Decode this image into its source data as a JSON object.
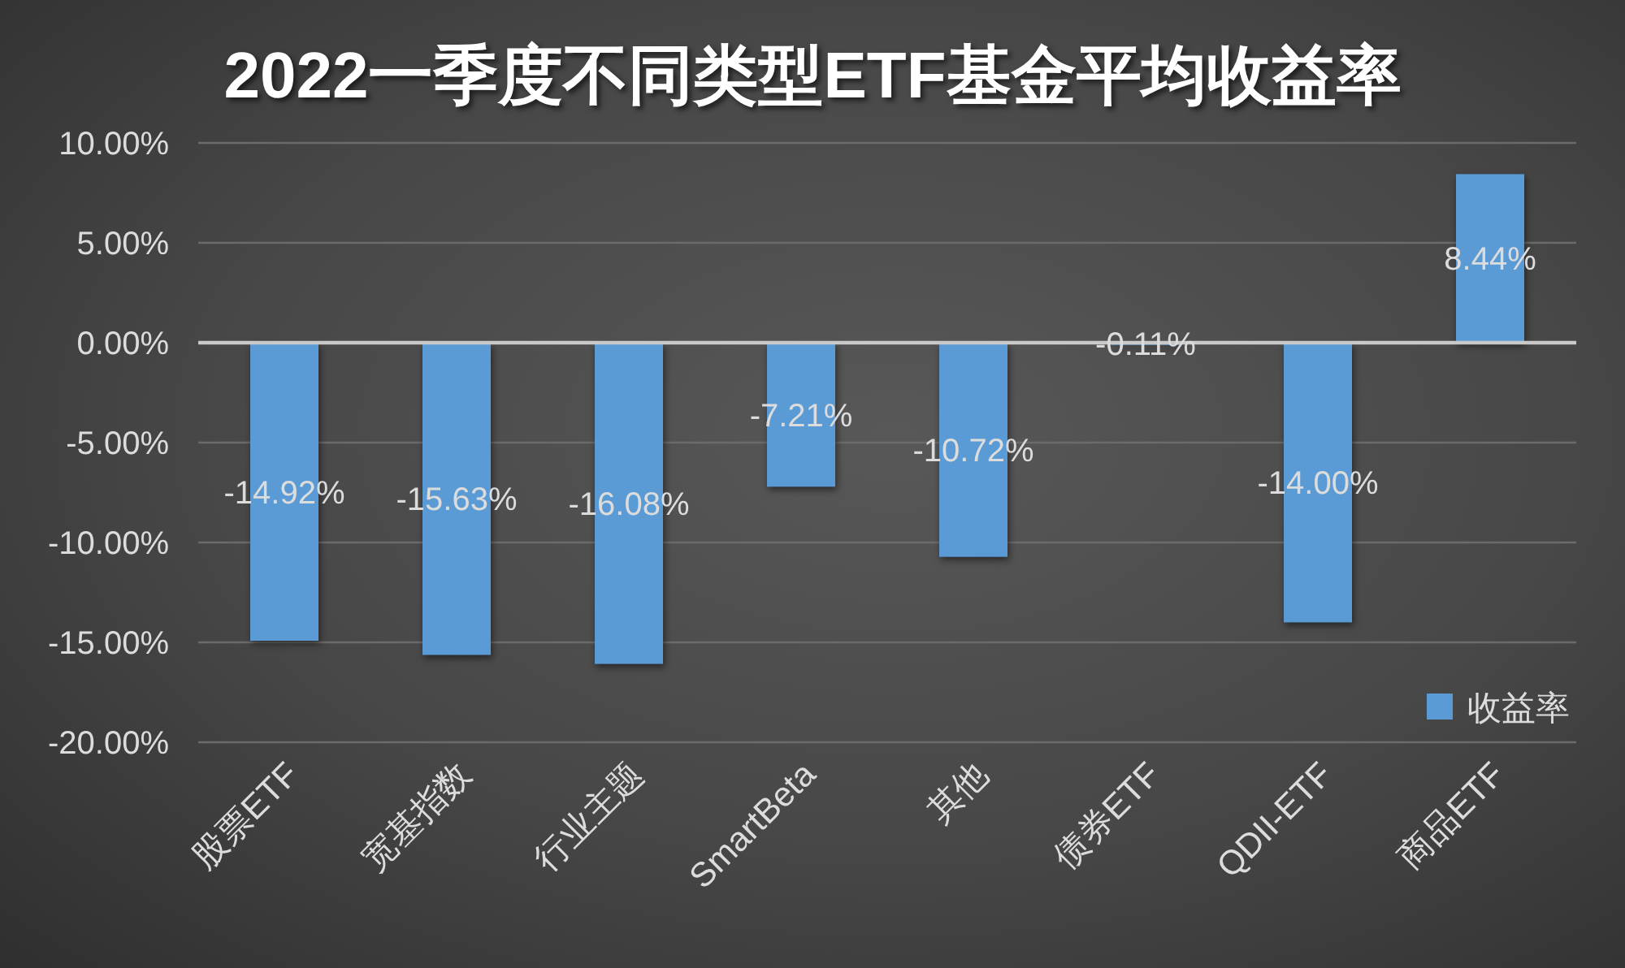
{
  "chart_data": {
    "type": "bar",
    "title": "2022一季度不同类型ETF基金平均收益率",
    "categories": [
      "股票ETF",
      "宽基指数",
      "行业主题",
      "SmartBeta",
      "其他",
      "债券ETF",
      "QDII-ETF",
      "商品ETF"
    ],
    "series": [
      {
        "name": "收益率",
        "color": "#5b9bd5",
        "values": [
          -14.92,
          -15.63,
          -16.08,
          -7.21,
          -10.72,
          -0.11,
          -14.0,
          8.44
        ],
        "value_labels": [
          "-14.92%",
          "-15.63%",
          "-16.08%",
          "-7.21%",
          "-10.72%",
          "-0.11%",
          "-14.00%",
          "8.44%"
        ]
      }
    ],
    "ylim": [
      -20,
      10
    ],
    "yticks": [
      {
        "value": -20,
        "label": "-20.00%"
      },
      {
        "value": -15,
        "label": "-15.00%"
      },
      {
        "value": -10,
        "label": "-10.00%"
      },
      {
        "value": -5,
        "label": "-5.00%"
      },
      {
        "value": 0,
        "label": "0.00%"
      },
      {
        "value": 5,
        "label": "5.00%"
      },
      {
        "value": 10,
        "label": "10.00%"
      }
    ],
    "grid": "y",
    "legend": "bottom right"
  }
}
